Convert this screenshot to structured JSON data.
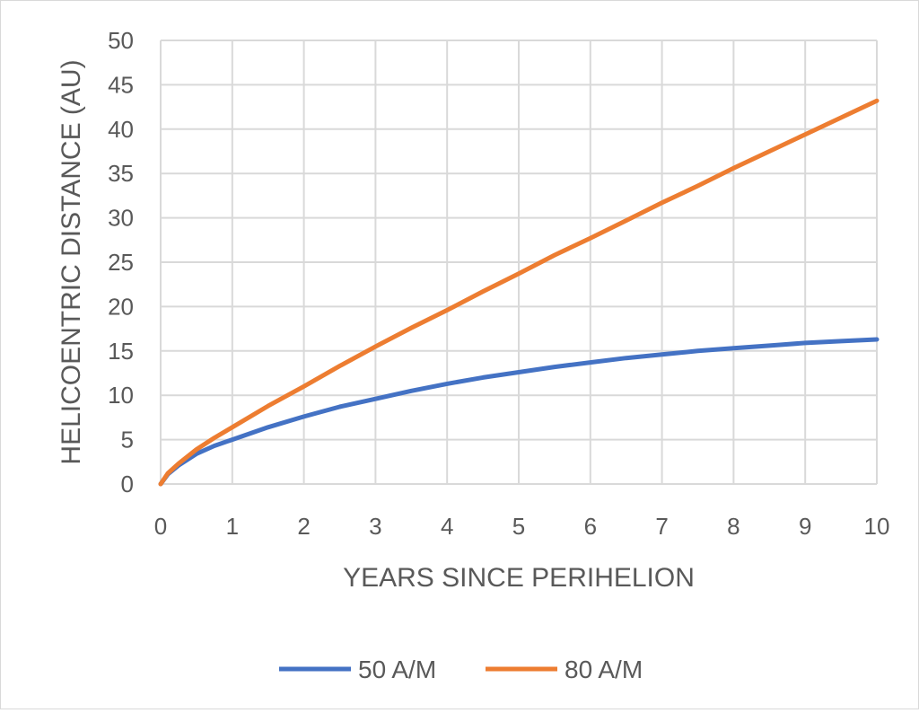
{
  "chart_data": {
    "type": "line",
    "title": "",
    "xlabel": "YEARS SINCE PERIHELION",
    "ylabel": "HELICOENTRIC DISTANCE (AU)",
    "xlim": [
      0,
      10
    ],
    "ylim": [
      0,
      50
    ],
    "xticks": [
      "0",
      "1",
      "2",
      "3",
      "4",
      "5",
      "6",
      "7",
      "8",
      "9",
      "10"
    ],
    "yticks": [
      "0",
      "5",
      "10",
      "15",
      "20",
      "25",
      "30",
      "35",
      "40",
      "45",
      "50"
    ],
    "grid": true,
    "legend_position": "bottom",
    "series": [
      {
        "name": "50 A/M",
        "color": "#4472C4",
        "x": [
          0,
          0.1,
          0.25,
          0.5,
          0.75,
          1,
          1.5,
          2,
          2.5,
          3,
          3.5,
          4,
          4.5,
          5,
          5.5,
          6,
          6.5,
          7,
          7.5,
          8,
          8.5,
          9,
          9.5,
          10
        ],
        "y": [
          0,
          1.1,
          2.1,
          3.4,
          4.3,
          5.0,
          6.4,
          7.6,
          8.7,
          9.6,
          10.5,
          11.3,
          12.0,
          12.6,
          13.2,
          13.7,
          14.2,
          14.6,
          15.0,
          15.3,
          15.6,
          15.9,
          16.1,
          16.3
        ]
      },
      {
        "name": "80 A/M",
        "color": "#ED7D31",
        "x": [
          0,
          0.1,
          0.25,
          0.5,
          0.75,
          1,
          1.5,
          2,
          2.5,
          3,
          3.5,
          4,
          4.5,
          5,
          5.5,
          6,
          6.5,
          7,
          7.5,
          8,
          8.5,
          9,
          9.5,
          10
        ],
        "y": [
          0,
          1.2,
          2.3,
          3.9,
          5.2,
          6.4,
          8.8,
          11.0,
          13.3,
          15.5,
          17.6,
          19.6,
          21.7,
          23.7,
          25.8,
          27.7,
          29.7,
          31.7,
          33.6,
          35.6,
          37.5,
          39.4,
          41.3,
          43.2
        ]
      }
    ]
  }
}
